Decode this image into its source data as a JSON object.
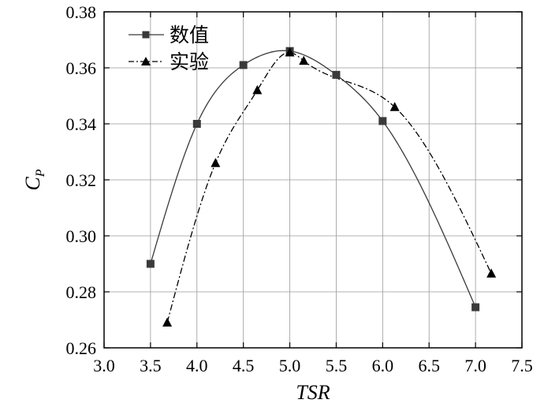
{
  "chart_data": {
    "type": "line",
    "xlabel": "TSR",
    "ylabel": "C",
    "ylabel_sub": "P",
    "xlim": [
      3.0,
      7.5
    ],
    "ylim": [
      0.26,
      0.38
    ],
    "xticks": [
      "3.0",
      "3.5",
      "4.0",
      "4.5",
      "5.0",
      "5.5",
      "6.0",
      "6.5",
      "7.0",
      "7.5"
    ],
    "yticks": [
      "0.26",
      "0.28",
      "0.30",
      "0.32",
      "0.34",
      "0.36",
      "0.38"
    ],
    "grid": true,
    "legend_position": "top-left",
    "series": [
      {
        "name": "数值",
        "marker": "square",
        "line_style": "solid",
        "color": "#3a3a3a",
        "x": [
          3.5,
          4.0,
          4.5,
          5.0,
          5.5,
          6.0,
          7.0
        ],
        "y": [
          0.29,
          0.34,
          0.361,
          0.366,
          0.3575,
          0.341,
          0.2745
        ]
      },
      {
        "name": "实验",
        "marker": "triangle",
        "line_style": "dash-dot",
        "color": "#000000",
        "x": [
          3.68,
          4.2,
          4.65,
          5.0,
          5.15,
          6.13,
          7.17
        ],
        "y": [
          0.269,
          0.326,
          0.352,
          0.3655,
          0.3625,
          0.346,
          0.2865
        ]
      }
    ]
  }
}
